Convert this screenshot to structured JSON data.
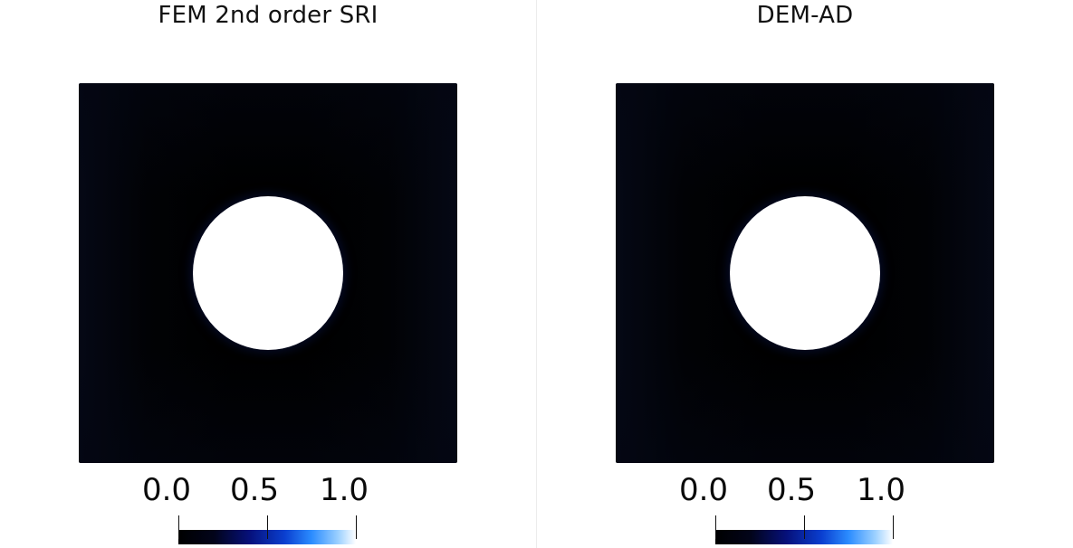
{
  "panels": [
    {
      "title": "FEM 2nd order SRI",
      "colorbar": {
        "ticks": [
          "0.0",
          "0.5",
          "1.0"
        ],
        "min": 0.0,
        "max": 1.0
      }
    },
    {
      "title": "DEM-AD",
      "colorbar": {
        "ticks": [
          "0.0",
          "0.5",
          "1.0"
        ],
        "min": 0.0,
        "max": 1.0
      }
    }
  ],
  "colormap": [
    "#000000",
    "#06107a",
    "#0a3fd0",
    "#2b8cff",
    "#ffffff"
  ]
}
